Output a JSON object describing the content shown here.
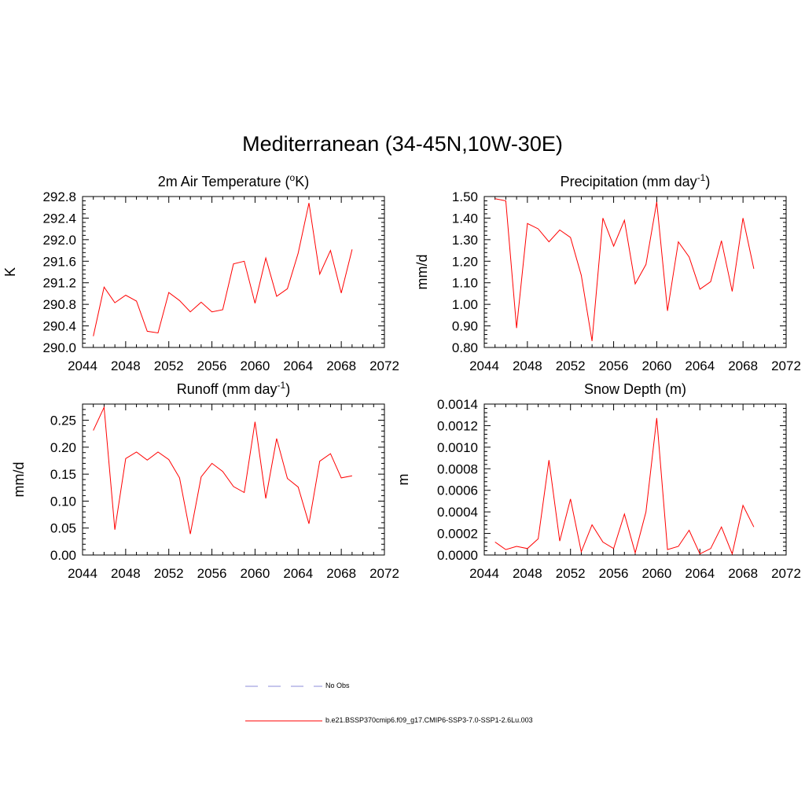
{
  "page": {
    "title": "Mediterranean (34-45N,10W-30E)"
  },
  "legend": {
    "items": [
      {
        "label": "No Obs",
        "color": "#8c8cd8",
        "style": "dashed"
      },
      {
        "label": "b.e21.BSSP370cmip6.f09_g17.CMIP6-SSP3-7.0-SSP1-2.6Lu.003",
        "color": "#ff0000",
        "style": "solid"
      }
    ]
  },
  "chart_data": [
    {
      "type": "line",
      "title_main": "2m Air Temperature (",
      "title_sup_pre": "o",
      "title_post": "K)",
      "ylabel": "K",
      "xlim": [
        2044,
        2072
      ],
      "ylim": [
        290.0,
        292.8
      ],
      "yticks": [
        "290.0",
        "290.4",
        "290.8",
        "291.2",
        "291.6",
        "292.0",
        "292.4",
        "292.8"
      ],
      "xticks": [
        "2044",
        "2048",
        "2052",
        "2056",
        "2060",
        "2064",
        "2068",
        "2072"
      ],
      "series": [
        {
          "color": "#ff0000",
          "x": [
            2045,
            2046,
            2047,
            2048,
            2049,
            2050,
            2051,
            2052,
            2053,
            2054,
            2055,
            2056,
            2057,
            2058,
            2059,
            2060,
            2061,
            2062,
            2063,
            2064,
            2065,
            2066,
            2067,
            2068,
            2069
          ],
          "y": [
            290.21,
            291.12,
            290.83,
            290.97,
            290.86,
            290.3,
            290.27,
            291.02,
            290.87,
            290.66,
            290.84,
            290.66,
            290.7,
            291.55,
            291.6,
            290.82,
            291.66,
            290.95,
            291.09,
            291.75,
            292.68,
            291.36,
            291.8,
            291.01,
            291.82
          ]
        }
      ]
    },
    {
      "type": "line",
      "title_main": "Precipitation (mm day",
      "title_sup_post": "-1",
      "title_post": ")",
      "ylabel": "mm/d",
      "xlim": [
        2044,
        2072
      ],
      "ylim": [
        0.8,
        1.5
      ],
      "yticks": [
        "0.80",
        "0.90",
        "1.00",
        "1.10",
        "1.20",
        "1.30",
        "1.40",
        "1.50"
      ],
      "xticks": [
        "2044",
        "2048",
        "2052",
        "2056",
        "2060",
        "2064",
        "2068",
        "2072"
      ],
      "series": [
        {
          "color": "#ff0000",
          "x": [
            2045,
            2046,
            2047,
            2048,
            2049,
            2050,
            2051,
            2052,
            2053,
            2054,
            2055,
            2056,
            2057,
            2058,
            2059,
            2060,
            2061,
            2062,
            2063,
            2064,
            2065,
            2066,
            2067,
            2068,
            2069
          ],
          "y": [
            1.49,
            1.48,
            0.89,
            1.375,
            1.35,
            1.29,
            1.345,
            1.31,
            1.135,
            0.83,
            1.4,
            1.27,
            1.39,
            1.095,
            1.185,
            1.475,
            0.97,
            1.29,
            1.22,
            1.07,
            1.105,
            1.295,
            1.06,
            1.4,
            1.165
          ]
        }
      ]
    },
    {
      "type": "line",
      "title_main": "Runoff (mm day",
      "title_sup_post": "-1",
      "title_post": ")",
      "ylabel": "mm/d",
      "xlim": [
        2044,
        2072
      ],
      "ylim": [
        0.0,
        0.28
      ],
      "yticks": [
        "0.00",
        "0.05",
        "0.10",
        "0.15",
        "0.20",
        "0.25"
      ],
      "ytick_values": [
        0.0,
        0.05,
        0.1,
        0.15,
        0.2,
        0.25
      ],
      "xticks": [
        "2044",
        "2048",
        "2052",
        "2056",
        "2060",
        "2064",
        "2068",
        "2072"
      ],
      "series": [
        {
          "color": "#ff0000",
          "x": [
            2045,
            2046,
            2047,
            2048,
            2049,
            2050,
            2051,
            2052,
            2053,
            2054,
            2055,
            2056,
            2057,
            2058,
            2059,
            2060,
            2061,
            2062,
            2063,
            2064,
            2065,
            2066,
            2067,
            2068,
            2069
          ],
          "y": [
            0.231,
            0.274,
            0.047,
            0.179,
            0.191,
            0.176,
            0.191,
            0.177,
            0.143,
            0.039,
            0.145,
            0.17,
            0.155,
            0.127,
            0.116,
            0.247,
            0.105,
            0.216,
            0.142,
            0.126,
            0.058,
            0.174,
            0.188,
            0.143,
            0.147
          ]
        }
      ]
    },
    {
      "type": "line",
      "title_main": "Snow Depth (m)",
      "ylabel": "m",
      "xlim": [
        2044,
        2072
      ],
      "ylim": [
        0.0,
        0.0014
      ],
      "yticks": [
        "0.0000",
        "0.0002",
        "0.0004",
        "0.0006",
        "0.0008",
        "0.0010",
        "0.0012",
        "0.0014"
      ],
      "xticks": [
        "2044",
        "2048",
        "2052",
        "2056",
        "2060",
        "2064",
        "2068",
        "2072"
      ],
      "series": [
        {
          "color": "#ff0000",
          "x": [
            2045,
            2046,
            2047,
            2048,
            2049,
            2050,
            2051,
            2052,
            2053,
            2054,
            2055,
            2056,
            2057,
            2058,
            2059,
            2060,
            2061,
            2062,
            2063,
            2064,
            2065,
            2066,
            2067,
            2068,
            2069
          ],
          "y": [
            0.00012,
            5e-05,
            8e-05,
            6e-05,
            0.00015,
            0.00088,
            0.00013,
            0.00052,
            3e-05,
            0.00028,
            0.00012,
            6e-05,
            0.00038,
            2e-05,
            0.0004,
            0.00127,
            5e-05,
            8e-05,
            0.00023,
            1e-05,
            6e-05,
            0.00026,
            1e-05,
            0.00046,
            0.00026
          ]
        }
      ]
    }
  ]
}
